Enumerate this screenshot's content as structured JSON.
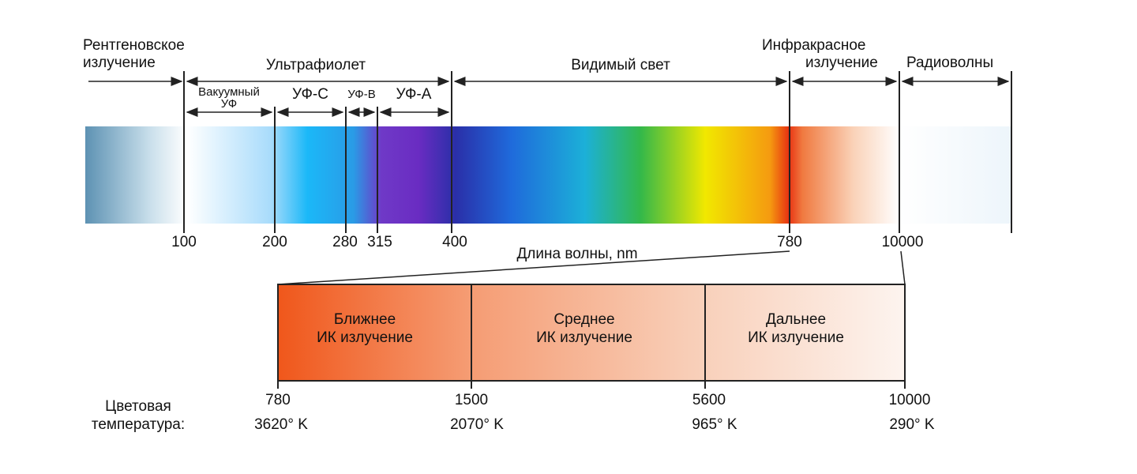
{
  "spectrum": {
    "regions": [
      {
        "label": [
          "Рентгеновское",
          "излучение"
        ]
      },
      {
        "label": [
          "Ультрафиолет"
        ]
      },
      {
        "label": [
          "Видимый свет"
        ]
      },
      {
        "label": [
          "Инфракрасное",
          "излучение"
        ]
      },
      {
        "label": [
          "Радиоволны"
        ]
      }
    ],
    "uv_subregions": [
      {
        "label": [
          "Вакуумный",
          "УФ"
        ]
      },
      {
        "label": [
          "УФ-С"
        ]
      },
      {
        "label": [
          "УФ-В"
        ]
      },
      {
        "label": [
          "УФ-А"
        ]
      }
    ],
    "ticks": [
      "100",
      "200",
      "280",
      "315",
      "400",
      "780",
      "10000"
    ],
    "axis_label": "Длина волны, nm"
  },
  "infrared": {
    "bands": [
      {
        "label": [
          "Ближнее",
          "ИК излучение"
        ]
      },
      {
        "label": [
          "Среднее",
          "ИК излучение"
        ]
      },
      {
        "label": [
          "Дальнее",
          "ИК излучение"
        ]
      }
    ],
    "ticks": [
      "780",
      "1500",
      "5600",
      "10000"
    ],
    "temperature_label": [
      "Цветовая",
      "температура:"
    ],
    "temperatures": [
      "3620° K",
      "2070° K",
      "965° K",
      "290° K"
    ]
  }
}
